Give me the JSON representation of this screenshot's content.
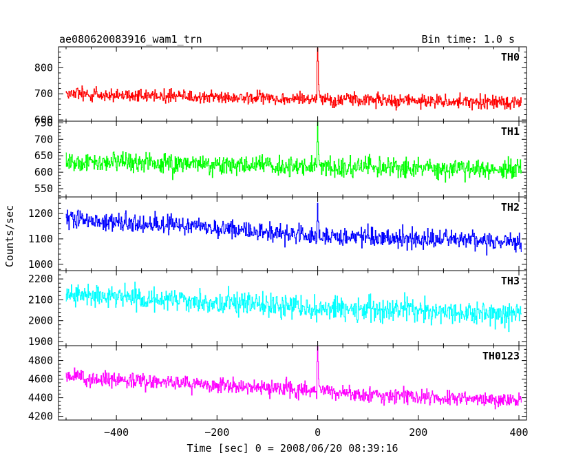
{
  "chart_data": {
    "type": "line",
    "title": "ae080620083916_wam1_trn",
    "subtitle": "Bin time: 1.0 s",
    "xlabel": "Time [sec] 0 = 2008/06/20 08:39:16",
    "ylabel": "Counts/sec",
    "xlim": [
      -515,
      415
    ],
    "xticks": [
      -400,
      -200,
      0,
      200,
      400
    ],
    "x": {
      "start": -500,
      "end": 405,
      "step": 1
    },
    "grid": false,
    "panels": [
      {
        "name": "TH0",
        "color": "#ff0000",
        "ylim": [
          595,
          880
        ],
        "yticks": [
          600,
          700,
          800
        ],
        "trend": [
          [
            -500,
            700
          ],
          [
            0,
            680
          ],
          [
            405,
            665
          ]
        ],
        "noise_sd": 25,
        "spike": {
          "x": 0,
          "peak": 875
        }
      },
      {
        "name": "TH1",
        "color": "#00ff00",
        "ylim": [
          525,
          755
        ],
        "yticks": [
          550,
          600,
          650,
          700,
          750
        ],
        "trend": [
          [
            -500,
            635
          ],
          [
            0,
            615
          ],
          [
            405,
            610
          ]
        ],
        "noise_sd": 30,
        "spike": {
          "x": 0,
          "peak": 752
        }
      },
      {
        "name": "TH2",
        "color": "#0000ff",
        "ylim": [
          975,
          1265
        ],
        "yticks": [
          1000,
          1100,
          1200
        ],
        "trend": [
          [
            -500,
            1180
          ],
          [
            -200,
            1140
          ],
          [
            0,
            1110
          ],
          [
            405,
            1090
          ]
        ],
        "noise_sd": 35,
        "spike": {
          "x": 0,
          "peak": 1240
        }
      },
      {
        "name": "TH3",
        "color": "#00ffff",
        "ylim": [
          1880,
          2240
        ],
        "yticks": [
          1900,
          2000,
          2100,
          2200
        ],
        "trend": [
          [
            -500,
            2125
          ],
          [
            0,
            2060
          ],
          [
            405,
            2030
          ]
        ],
        "noise_sd": 55,
        "spike": null
      },
      {
        "name": "TH0123",
        "color": "#ff00ff",
        "ylim": [
          4160,
          4960
        ],
        "yticks": [
          4200,
          4400,
          4600,
          4800
        ],
        "trend": [
          [
            -500,
            4620
          ],
          [
            0,
            4480
          ],
          [
            100,
            4420
          ],
          [
            405,
            4370
          ]
        ],
        "noise_sd": 80,
        "spike": {
          "x": 0,
          "peak": 4950
        }
      }
    ]
  }
}
